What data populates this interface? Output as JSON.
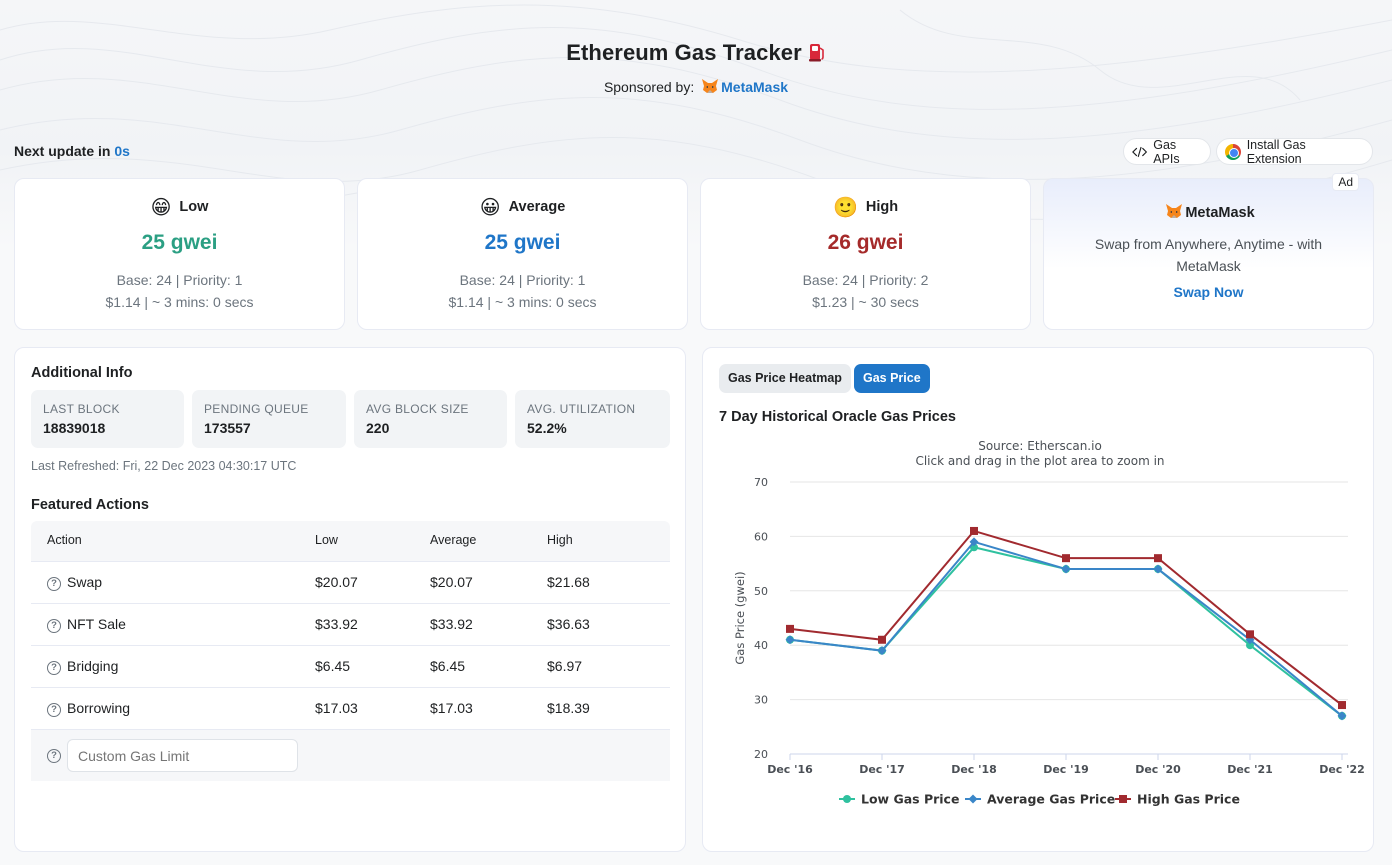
{
  "header": {
    "title": "Ethereum Gas Tracker",
    "sponsor_prefix": "Sponsored by:",
    "sponsor_name": "MetaMask"
  },
  "update": {
    "label": "Next update in",
    "value": "0s"
  },
  "toolbar": {
    "api_label": "Gas APIs",
    "extension_label": "Install Gas Extension"
  },
  "gas_cards": [
    {
      "label": "Low",
      "emoji": "😁",
      "price": "25 gwei",
      "breakdown": "Base: 24 | Priority: 1",
      "cost": "$1.14 | ~ 3 mins: 0 secs",
      "color": "#2b9f83"
    },
    {
      "label": "Average",
      "emoji": "😀",
      "price": "25 gwei",
      "breakdown": "Base: 24 | Priority: 1",
      "cost": "$1.14 | ~ 3 mins: 0 secs",
      "color": "#1f76c8"
    },
    {
      "label": "High",
      "emoji": "🙂",
      "price": "26 gwei",
      "breakdown": "Base: 24 | Priority: 2",
      "cost": "$1.23 | ~ 30 secs",
      "color": "#a52a2a"
    }
  ],
  "ad": {
    "badge": "Ad",
    "title": "MetaMask",
    "text": "Swap from Anywhere, Anytime - with MetaMask",
    "link": "Swap Now"
  },
  "additional_info": {
    "title": "Additional Info",
    "stats": [
      {
        "label": "LAST BLOCK",
        "value": "18839018"
      },
      {
        "label": "PENDING QUEUE",
        "value": "173557"
      },
      {
        "label": "AVG BLOCK SIZE",
        "value": "220"
      },
      {
        "label": "AVG. UTILIZATION",
        "value": "52.2%"
      }
    ],
    "last_refreshed": "Last Refreshed: Fri, 22 Dec 2023 04:30:17 UTC"
  },
  "featured_actions": {
    "title": "Featured Actions",
    "columns": [
      "Action",
      "Low",
      "Average",
      "High"
    ],
    "rows": [
      {
        "action": "Swap",
        "low": "$20.07",
        "average": "$20.07",
        "high": "$21.68"
      },
      {
        "action": "NFT Sale",
        "low": "$33.92",
        "average": "$33.92",
        "high": "$36.63"
      },
      {
        "action": "Bridging",
        "low": "$6.45",
        "average": "$6.45",
        "high": "$6.97"
      },
      {
        "action": "Borrowing",
        "low": "$17.03",
        "average": "$17.03",
        "high": "$18.39"
      }
    ],
    "custom_placeholder": "Custom Gas Limit"
  },
  "chart_tabs": {
    "heatmap": "Gas Price Heatmap",
    "price": "Gas Price",
    "active": "Gas Price"
  },
  "chart_data": {
    "type": "line",
    "title": "7 Day Historical Oracle Gas Prices",
    "subtitle": "Source: Etherscan.io",
    "subtitle2": "Click and drag in the plot area to zoom in",
    "xlabel": "",
    "ylabel": "Gas Price (gwei)",
    "categories": [
      "Dec '16",
      "Dec '17",
      "Dec '18",
      "Dec '19",
      "Dec '20",
      "Dec '21",
      "Dec '22"
    ],
    "yticks": [
      20,
      30,
      40,
      50,
      60,
      70
    ],
    "ylim": [
      20,
      70
    ],
    "grid": true,
    "legend_position": "bottom",
    "series": [
      {
        "name": "Low Gas Price",
        "color": "#2fc19f",
        "marker": "circle",
        "values": [
          41,
          39,
          58,
          54,
          54,
          40,
          27
        ]
      },
      {
        "name": "Average Gas Price",
        "color": "#3a86c8",
        "marker": "diamond",
        "values": [
          41,
          39,
          59,
          54,
          54,
          41,
          27
        ]
      },
      {
        "name": "High Gas Price",
        "color": "#a12a2f",
        "marker": "square",
        "values": [
          43,
          41,
          61,
          56,
          56,
          42,
          29
        ]
      }
    ]
  }
}
